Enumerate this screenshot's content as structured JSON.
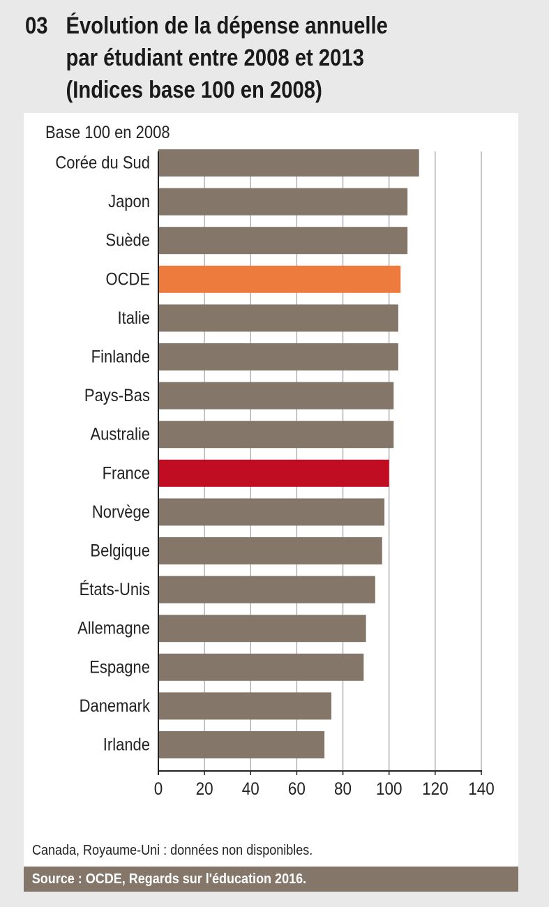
{
  "header": {
    "number": "03",
    "title_lines": [
      "Évolution de la dépense annuelle",
      "par étudiant entre 2008 et 2013",
      "(Indices base 100 en 2008)"
    ]
  },
  "note": "Canada, Royaume-Uni : données non disponibles.",
  "source": "Source : OCDE, Regards sur l'éducation 2016.",
  "chart_data": {
    "type": "bar",
    "orientation": "horizontal",
    "unit_label": "Base 100 en 2008",
    "categories": [
      "Corée du Sud",
      "Japon",
      "Suède",
      "OCDE",
      "Italie",
      "Finlande",
      "Pays-Bas",
      "Australie",
      "France",
      "Norvège",
      "Belgique",
      "États-Unis",
      "Allemagne",
      "Espagne",
      "Danemark",
      "Irlande"
    ],
    "values": [
      113,
      108,
      108,
      105,
      104,
      104,
      102,
      102,
      100,
      98,
      97,
      94,
      90,
      89,
      75,
      72
    ],
    "xlim": [
      0,
      140
    ],
    "xticks": [
      0,
      20,
      40,
      60,
      80,
      100,
      120,
      140
    ],
    "grid": "vertical",
    "colors": {
      "default": "#85766a",
      "OCDE": "#ed7b3d",
      "France": "#c00d21"
    }
  }
}
